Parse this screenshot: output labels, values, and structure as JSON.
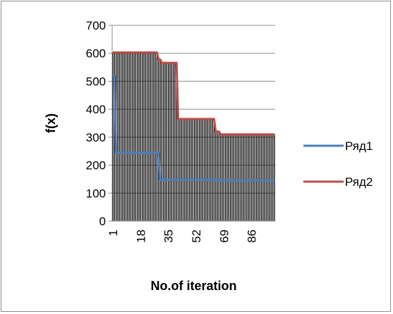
{
  "chart_data": {
    "type": "line",
    "title": "",
    "xlabel": "No.of iteration",
    "ylabel": "f(x)",
    "ylim": [
      0,
      700
    ],
    "yticks": [
      0,
      100,
      200,
      300,
      400,
      500,
      600,
      700
    ],
    "xticks": [
      "1",
      "18",
      "35",
      "52",
      "69",
      "86"
    ],
    "x_range": [
      1,
      100
    ],
    "grid": "horizontal",
    "legend_position": "right",
    "drop_lines": true,
    "series": [
      {
        "name": "Ряд1",
        "color": "#4a7ebb",
        "steps": [
          [
            1,
            520
          ],
          [
            3,
            245
          ],
          [
            28,
            245
          ],
          [
            30,
            148
          ],
          [
            65,
            145
          ],
          [
            100,
            140
          ]
        ]
      },
      {
        "name": "Ряд2",
        "color": "#be4b48",
        "steps": [
          [
            1,
            603
          ],
          [
            28,
            603
          ],
          [
            29,
            578
          ],
          [
            31,
            566
          ],
          [
            40,
            566
          ],
          [
            41,
            365
          ],
          [
            63,
            365
          ],
          [
            64,
            320
          ],
          [
            67,
            310
          ],
          [
            100,
            310
          ]
        ]
      }
    ]
  }
}
